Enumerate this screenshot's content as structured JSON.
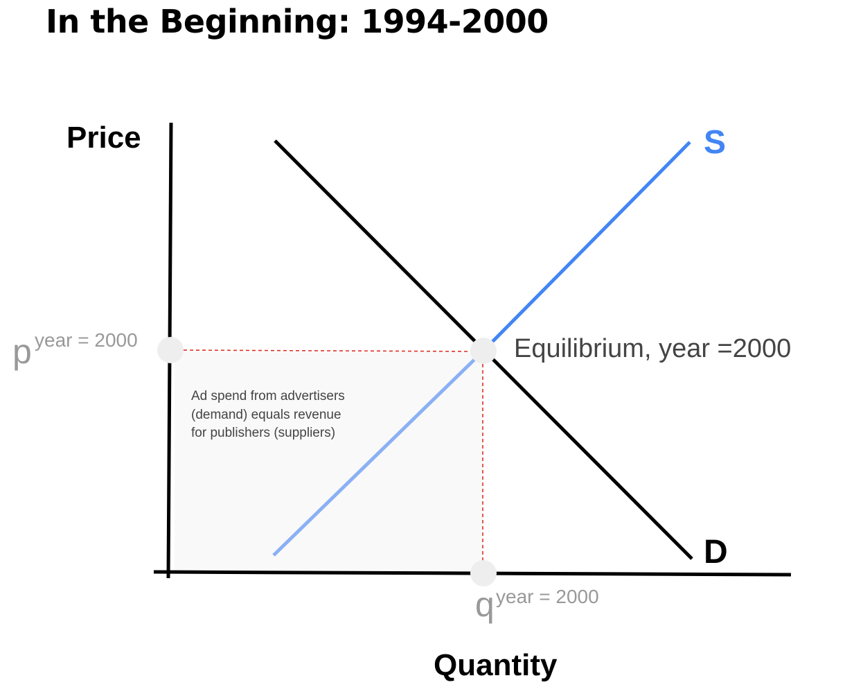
{
  "title": "In the Beginning: 1994-2000",
  "axes": {
    "y_label": "Price",
    "x_label": "Quantity"
  },
  "curves": {
    "supply_label": "S",
    "demand_label": "D"
  },
  "equilibrium": {
    "label": "Equilibrium, year =2000",
    "price_label": {
      "base": "p",
      "superscript": "year = 2000"
    },
    "quantity_label": {
      "base": "q",
      "superscript": "year = 2000"
    }
  },
  "area_note": [
    "Ad spend from advertisers",
    "(demand) equals  revenue",
    "for publishers (suppliers)"
  ],
  "colors": {
    "supply": "#4285f4",
    "supply_light": "#8ab0f5",
    "demand": "#000000",
    "guide_lines": "#d93025",
    "point": "#eeeeee",
    "muted_text": "#999999",
    "area_fill": "#f9f9f9"
  }
}
